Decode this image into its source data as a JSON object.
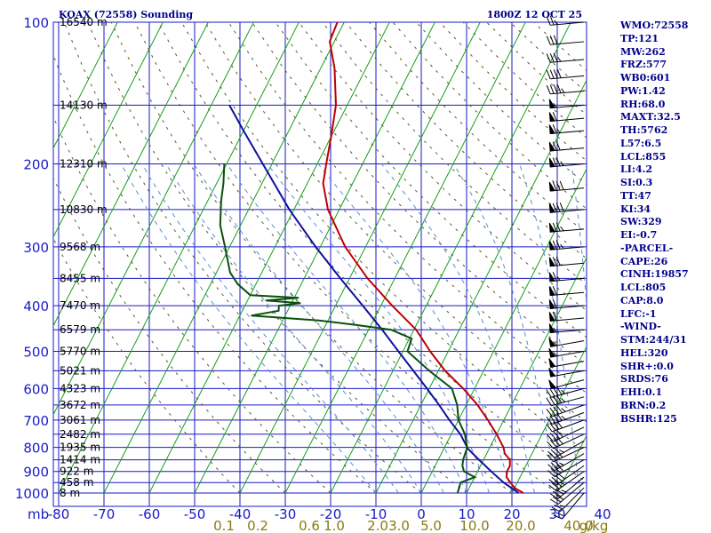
{
  "header": {
    "title": "KOAX (72558) Sounding",
    "time": "1800Z 12 OCT 25"
  },
  "indices": [
    "WMO:72558",
    "TP:121",
    "MW:262",
    "FRZ:577",
    "WB0:601",
    "PW:1.42",
    "RH:68.0",
    "MAXT:32.5",
    "TH:5762",
    "L57:6.5",
    "LCL:855",
    "LI:4.2",
    "SI:0.3",
    "TT:47",
    "KI:34",
    "SW:329",
    "EI:-0.7",
    "-PARCEL-",
    "CAPE:26",
    "CINH:19857",
    "LCL:805",
    "CAP:8.0",
    "LFC:-1",
    "-WIND-",
    "STM:244/31",
    "HEL:320",
    "SHR+:0.0",
    "SRDS:76",
    "EHI:0.1",
    "BRN:0.2",
    "BSHR:125"
  ],
  "colors": {
    "grid": "#1a1ac8",
    "isotherm": "#18a018",
    "dry_adiabat": "#5a5a2a",
    "moist_adiabat": "#5a8cd2",
    "temperature": "#c00000",
    "dewpoint": "#0a500a",
    "parcel": "#1010a0",
    "mixing_ratio_label": "#8a7a10"
  },
  "chart_data": {
    "type": "skew-t",
    "title": "KOAX (72558) Sounding",
    "pressure_levels": [
      100,
      200,
      300,
      400,
      500,
      600,
      700,
      800,
      900,
      1000
    ],
    "pressure_unit": "mb",
    "temperature_ticks": [
      -80,
      -70,
      -60,
      -50,
      -40,
      -30,
      -20,
      -10,
      0,
      10,
      20,
      30,
      40
    ],
    "mixing_ratio_labels": [
      "0.1",
      "0.2",
      "0.6",
      "1.0",
      "2.0",
      "3.0",
      "5.0",
      "10.0",
      "20.0",
      "40.0"
    ],
    "mixing_ratio_unit": "g/kg",
    "heights": [
      {
        "p": 100,
        "label": "16540 m"
      },
      {
        "p": 150,
        "label": "14130 m"
      },
      {
        "p": 200,
        "label": "12310 m"
      },
      {
        "p": 250,
        "label": "10830 m"
      },
      {
        "p": 300,
        "label": "9568 m"
      },
      {
        "p": 350,
        "label": "8455 m"
      },
      {
        "p": 400,
        "label": "7470 m"
      },
      {
        "p": 450,
        "label": "6579 m"
      },
      {
        "p": 500,
        "label": "5770 m"
      },
      {
        "p": 550,
        "label": "5021 m"
      },
      {
        "p": 600,
        "label": "4323 m"
      },
      {
        "p": 650,
        "label": "3672 m"
      },
      {
        "p": 700,
        "label": "3061 m"
      },
      {
        "p": 750,
        "label": "2482 m"
      },
      {
        "p": 800,
        "label": "1935 m"
      },
      {
        "p": 850,
        "label": "1414 m"
      },
      {
        "p": 900,
        "label": "922 m"
      },
      {
        "p": 950,
        "label": "458 m"
      },
      {
        "p": 1000,
        "label": "8 m"
      }
    ],
    "temperature": [
      [
        1000,
        22.5
      ],
      [
        975,
        20.0
      ],
      [
        950,
        18.5
      ],
      [
        925,
        17.0
      ],
      [
        900,
        16.5
      ],
      [
        875,
        16.5
      ],
      [
        850,
        15.8
      ],
      [
        825,
        14.0
      ],
      [
        800,
        13.0
      ],
      [
        750,
        10.0
      ],
      [
        700,
        6.5
      ],
      [
        650,
        2.5
      ],
      [
        600,
        -2.5
      ],
      [
        550,
        -8.5
      ],
      [
        500,
        -14.0
      ],
      [
        450,
        -19.5
      ],
      [
        400,
        -27.5
      ],
      [
        350,
        -36.0
      ],
      [
        300,
        -44.5
      ],
      [
        250,
        -52.5
      ],
      [
        220,
        -56.5
      ],
      [
        200,
        -58.0
      ],
      [
        175,
        -60.0
      ],
      [
        150,
        -62.5
      ],
      [
        125,
        -67.0
      ],
      [
        110,
        -71.0
      ],
      [
        100,
        -71.5
      ]
    ],
    "dewpoint": [
      [
        1000,
        8.0
      ],
      [
        950,
        7.5
      ],
      [
        925,
        10.0
      ],
      [
        900,
        7.0
      ],
      [
        875,
        6.0
      ],
      [
        850,
        5.5
      ],
      [
        800,
        5.0
      ],
      [
        750,
        3.0
      ],
      [
        700,
        0.0
      ],
      [
        650,
        -2.0
      ],
      [
        600,
        -5.0
      ],
      [
        550,
        -12.0
      ],
      [
        500,
        -19.0
      ],
      [
        470,
        -19.5
      ],
      [
        450,
        -25.0
      ],
      [
        440,
        -33.0
      ],
      [
        430,
        -42.0
      ],
      [
        420,
        -57.5
      ],
      [
        410,
        -52.0
      ],
      [
        400,
        -52.5
      ],
      [
        395,
        -48.0
      ],
      [
        390,
        -56.0
      ],
      [
        385,
        -49.0
      ],
      [
        380,
        -60.0
      ],
      [
        360,
        -64.0
      ],
      [
        340,
        -67.0
      ],
      [
        300,
        -71.0
      ],
      [
        270,
        -74.5
      ],
      [
        240,
        -77.0
      ],
      [
        220,
        -78.5
      ],
      [
        200,
        -80.5
      ]
    ],
    "parcel": [
      [
        1000,
        21.5
      ],
      [
        950,
        17.0
      ],
      [
        900,
        13.0
      ],
      [
        850,
        9.0
      ],
      [
        805,
        5.3
      ],
      [
        750,
        2.0
      ],
      [
        700,
        -2.0
      ],
      [
        650,
        -6.0
      ],
      [
        600,
        -10.5
      ],
      [
        550,
        -15.5
      ],
      [
        500,
        -21.0
      ],
      [
        450,
        -27.0
      ],
      [
        400,
        -34.0
      ],
      [
        350,
        -42.0
      ],
      [
        300,
        -51.0
      ],
      [
        250,
        -61.0
      ],
      [
        200,
        -72.0
      ],
      [
        170,
        -80.0
      ],
      [
        150,
        -86.0
      ]
    ],
    "isotherms_c": [
      -120,
      -110,
      -100,
      -90,
      -80,
      -70,
      -60,
      -50,
      -40,
      -30,
      -20,
      -10,
      0,
      10,
      20,
      30,
      40
    ],
    "wind_barbs": [
      [
        1000,
        220,
        20
      ],
      [
        975,
        225,
        25
      ],
      [
        950,
        230,
        30
      ],
      [
        925,
        230,
        35
      ],
      [
        900,
        235,
        35
      ],
      [
        875,
        235,
        40
      ],
      [
        850,
        240,
        40
      ],
      [
        825,
        240,
        35
      ],
      [
        800,
        245,
        35
      ],
      [
        775,
        240,
        35
      ],
      [
        750,
        245,
        40
      ],
      [
        725,
        245,
        40
      ],
      [
        700,
        250,
        40
      ],
      [
        675,
        250,
        45
      ],
      [
        650,
        250,
        45
      ],
      [
        625,
        255,
        45
      ],
      [
        600,
        255,
        45
      ],
      [
        575,
        255,
        50
      ],
      [
        550,
        260,
        50
      ],
      [
        525,
        260,
        50
      ],
      [
        500,
        260,
        55
      ],
      [
        475,
        260,
        55
      ],
      [
        450,
        265,
        55
      ],
      [
        425,
        265,
        60
      ],
      [
        400,
        265,
        60
      ],
      [
        375,
        265,
        60
      ],
      [
        350,
        265,
        65
      ],
      [
        325,
        265,
        70
      ],
      [
        300,
        265,
        75
      ],
      [
        275,
        265,
        75
      ],
      [
        250,
        265,
        80
      ],
      [
        225,
        265,
        80
      ],
      [
        200,
        265,
        75
      ],
      [
        185,
        265,
        70
      ],
      [
        170,
        265,
        65
      ],
      [
        160,
        265,
        60
      ],
      [
        150,
        265,
        55
      ],
      [
        140,
        265,
        45
      ],
      [
        130,
        265,
        40
      ],
      [
        120,
        265,
        35
      ],
      [
        110,
        265,
        30
      ],
      [
        100,
        265,
        25
      ]
    ]
  }
}
